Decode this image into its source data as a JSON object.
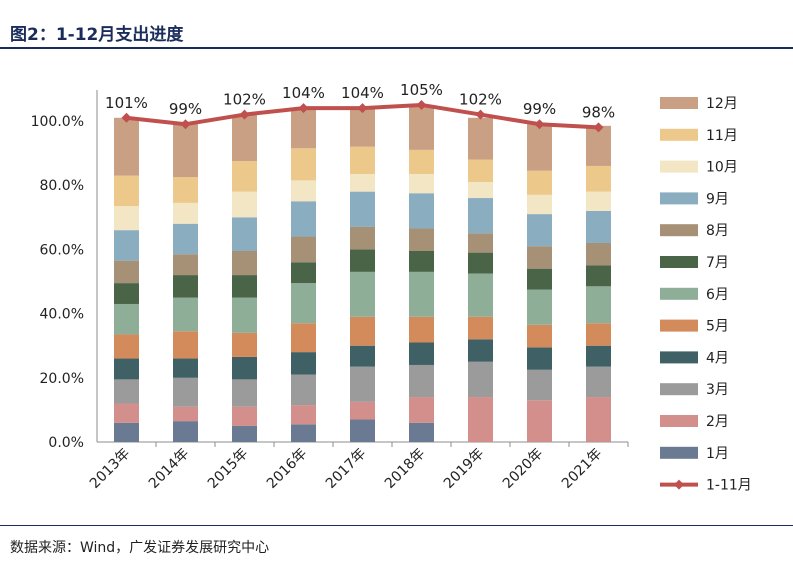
{
  "header": {
    "title": "图2：1-12月支出进度"
  },
  "footer": {
    "source": "数据来源：Wind，广发证券发展研究中心"
  },
  "chart_data": {
    "type": "bar",
    "stacked": true,
    "title": "1-12月支出进度",
    "categories": [
      "2013年",
      "2014年",
      "2015年",
      "2016年",
      "2017年",
      "2018年",
      "2019年",
      "2020年",
      "2021年"
    ],
    "y_ticks": [
      "0.0%",
      "20.0%",
      "40.0%",
      "60.0%",
      "80.0%",
      "100.0%"
    ],
    "ylim": [
      0,
      1.1
    ],
    "series": [
      {
        "name": "1月",
        "color": "#6b7a93",
        "values": [
          0.06,
          0.065,
          0.05,
          0.055,
          0.07,
          0.06,
          0.0,
          0.0,
          0.0
        ]
      },
      {
        "name": "2月",
        "color": "#d38f8b",
        "values": [
          0.06,
          0.045,
          0.06,
          0.06,
          0.055,
          0.08,
          0.14,
          0.13,
          0.14
        ]
      },
      {
        "name": "3月",
        "color": "#9b9b9b",
        "values": [
          0.075,
          0.09,
          0.085,
          0.095,
          0.11,
          0.1,
          0.11,
          0.095,
          0.095
        ]
      },
      {
        "name": "4月",
        "color": "#3f6064",
        "values": [
          0.065,
          0.06,
          0.07,
          0.07,
          0.065,
          0.07,
          0.07,
          0.07,
          0.065
        ]
      },
      {
        "name": "5月",
        "color": "#d48b5c",
        "values": [
          0.075,
          0.085,
          0.075,
          0.09,
          0.09,
          0.08,
          0.07,
          0.07,
          0.07
        ]
      },
      {
        "name": "6月",
        "color": "#8fae98",
        "values": [
          0.095,
          0.105,
          0.11,
          0.125,
          0.14,
          0.14,
          0.135,
          0.11,
          0.115
        ]
      },
      {
        "name": "7月",
        "color": "#4a6448",
        "values": [
          0.065,
          0.07,
          0.07,
          0.065,
          0.07,
          0.065,
          0.065,
          0.065,
          0.065
        ]
      },
      {
        "name": "8月",
        "color": "#a69176",
        "values": [
          0.07,
          0.065,
          0.075,
          0.08,
          0.07,
          0.07,
          0.06,
          0.07,
          0.07
        ]
      },
      {
        "name": "9月",
        "color": "#8aaebf",
        "values": [
          0.095,
          0.095,
          0.105,
          0.11,
          0.11,
          0.11,
          0.11,
          0.1,
          0.1
        ]
      },
      {
        "name": "10月",
        "color": "#f3e6c4",
        "values": [
          0.075,
          0.065,
          0.08,
          0.065,
          0.055,
          0.06,
          0.05,
          0.06,
          0.06
        ]
      },
      {
        "name": "11月",
        "color": "#ecc88a",
        "values": [
          0.095,
          0.08,
          0.095,
          0.1,
          0.085,
          0.075,
          0.07,
          0.075,
          0.08
        ]
      },
      {
        "name": "12月",
        "color": "#c9a084",
        "values": [
          0.18,
          0.165,
          0.145,
          0.12,
          0.12,
          0.135,
          0.13,
          0.145,
          0.125
        ]
      }
    ],
    "line": {
      "name": "1-11月",
      "color": "#c0504d",
      "values": [
        1.01,
        0.99,
        1.02,
        1.04,
        1.04,
        1.05,
        1.02,
        0.99,
        0.98
      ],
      "labels": [
        "101%",
        "99%",
        "102%",
        "104%",
        "104%",
        "105%",
        "102%",
        "99%",
        "98%"
      ]
    },
    "legend_position": "right"
  }
}
